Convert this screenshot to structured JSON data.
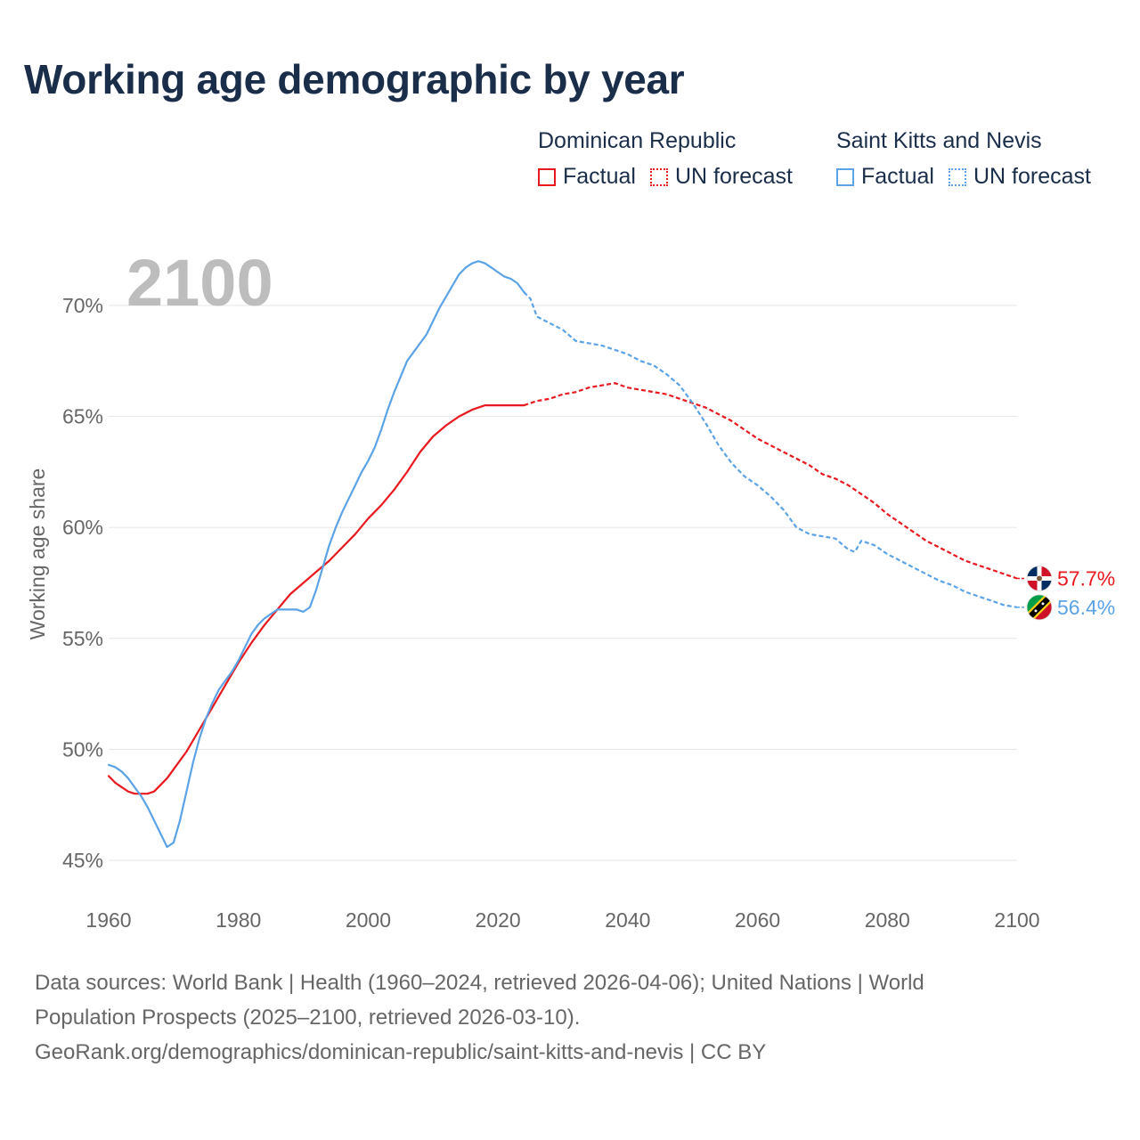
{
  "title": "Working age demographic by year",
  "legend": {
    "groups": [
      {
        "name": "Dominican Republic",
        "factual_label": "Factual",
        "forecast_label": "UN forecast",
        "color": "#e8191f"
      },
      {
        "name": "Saint Kitts and Nevis",
        "factual_label": "Factual",
        "forecast_label": "UN forecast",
        "color": "#5ba3e6"
      }
    ]
  },
  "year_watermark": "2100",
  "footer": {
    "line1": "Data sources: World Bank | Health (1960–2024, retrieved 2026-04-06); United Nations | World",
    "line2": "Population Prospects (2025–2100, retrieved 2026-03-10).",
    "line3": "GeoRank.org/demographics/dominican-republic/saint-kitts-and-nevis | CC BY"
  },
  "chart_data": {
    "type": "line",
    "title": "Working age demographic by year",
    "xlabel": "",
    "ylabel": "Working age share",
    "xlim": [
      1960,
      2100
    ],
    "ylim": [
      44,
      73
    ],
    "x_ticks": [
      1960,
      1980,
      2000,
      2020,
      2040,
      2060,
      2080,
      2100
    ],
    "y_ticks": [
      45,
      50,
      55,
      60,
      65,
      70
    ],
    "y_tick_labels": [
      "45%",
      "50%",
      "55%",
      "60%",
      "65%",
      "70%"
    ],
    "grid": true,
    "forecast_start_year": 2024,
    "series": [
      {
        "name": "Dominican Republic",
        "color": "#e8191f",
        "end_label": "57.7%",
        "flag": "dominican-republic",
        "points": [
          [
            1960,
            48.8
          ],
          [
            1961,
            48.5
          ],
          [
            1962,
            48.3
          ],
          [
            1963,
            48.1
          ],
          [
            1964,
            48.0
          ],
          [
            1965,
            48.0
          ],
          [
            1966,
            48.0
          ],
          [
            1967,
            48.1
          ],
          [
            1968,
            48.4
          ],
          [
            1969,
            48.7
          ],
          [
            1970,
            49.1
          ],
          [
            1972,
            49.9
          ],
          [
            1974,
            50.9
          ],
          [
            1976,
            51.9
          ],
          [
            1978,
            52.9
          ],
          [
            1980,
            53.9
          ],
          [
            1982,
            54.8
          ],
          [
            1984,
            55.6
          ],
          [
            1986,
            56.3
          ],
          [
            1988,
            57.0
          ],
          [
            1990,
            57.5
          ],
          [
            1992,
            58.0
          ],
          [
            1994,
            58.5
          ],
          [
            1996,
            59.1
          ],
          [
            1998,
            59.7
          ],
          [
            2000,
            60.4
          ],
          [
            2002,
            61.0
          ],
          [
            2004,
            61.7
          ],
          [
            2006,
            62.5
          ],
          [
            2008,
            63.4
          ],
          [
            2010,
            64.1
          ],
          [
            2012,
            64.6
          ],
          [
            2014,
            65.0
          ],
          [
            2016,
            65.3
          ],
          [
            2018,
            65.5
          ],
          [
            2020,
            65.5
          ],
          [
            2022,
            65.5
          ],
          [
            2024,
            65.5
          ],
          [
            2026,
            65.7
          ],
          [
            2028,
            65.8
          ],
          [
            2030,
            66.0
          ],
          [
            2032,
            66.1
          ],
          [
            2034,
            66.3
          ],
          [
            2036,
            66.4
          ],
          [
            2038,
            66.5
          ],
          [
            2040,
            66.3
          ],
          [
            2042,
            66.2
          ],
          [
            2044,
            66.1
          ],
          [
            2046,
            66.0
          ],
          [
            2048,
            65.8
          ],
          [
            2050,
            65.6
          ],
          [
            2052,
            65.4
          ],
          [
            2054,
            65.1
          ],
          [
            2056,
            64.8
          ],
          [
            2058,
            64.4
          ],
          [
            2060,
            64.0
          ],
          [
            2062,
            63.7
          ],
          [
            2064,
            63.4
          ],
          [
            2066,
            63.1
          ],
          [
            2068,
            62.8
          ],
          [
            2070,
            62.4
          ],
          [
            2072,
            62.2
          ],
          [
            2074,
            61.9
          ],
          [
            2076,
            61.5
          ],
          [
            2078,
            61.1
          ],
          [
            2080,
            60.6
          ],
          [
            2082,
            60.2
          ],
          [
            2084,
            59.8
          ],
          [
            2086,
            59.4
          ],
          [
            2088,
            59.1
          ],
          [
            2090,
            58.8
          ],
          [
            2092,
            58.5
          ],
          [
            2094,
            58.3
          ],
          [
            2096,
            58.1
          ],
          [
            2098,
            57.9
          ],
          [
            2100,
            57.7
          ]
        ]
      },
      {
        "name": "Saint Kitts and Nevis",
        "color": "#5ba3e6",
        "end_label": "56.4%",
        "flag": "saint-kitts-and-nevis",
        "points": [
          [
            1960,
            49.3
          ],
          [
            1961,
            49.2
          ],
          [
            1962,
            49.0
          ],
          [
            1963,
            48.7
          ],
          [
            1964,
            48.3
          ],
          [
            1965,
            47.9
          ],
          [
            1966,
            47.4
          ],
          [
            1967,
            46.8
          ],
          [
            1968,
            46.2
          ],
          [
            1969,
            45.6
          ],
          [
            1970,
            45.8
          ],
          [
            1971,
            46.8
          ],
          [
            1972,
            48.1
          ],
          [
            1973,
            49.4
          ],
          [
            1974,
            50.5
          ],
          [
            1975,
            51.4
          ],
          [
            1976,
            52.1
          ],
          [
            1977,
            52.7
          ],
          [
            1978,
            53.1
          ],
          [
            1979,
            53.5
          ],
          [
            1980,
            54.0
          ],
          [
            1981,
            54.6
          ],
          [
            1982,
            55.2
          ],
          [
            1983,
            55.6
          ],
          [
            1984,
            55.9
          ],
          [
            1985,
            56.1
          ],
          [
            1986,
            56.3
          ],
          [
            1987,
            56.3
          ],
          [
            1988,
            56.3
          ],
          [
            1989,
            56.3
          ],
          [
            1990,
            56.2
          ],
          [
            1991,
            56.4
          ],
          [
            1992,
            57.2
          ],
          [
            1993,
            58.2
          ],
          [
            1994,
            59.2
          ],
          [
            1995,
            60.0
          ],
          [
            1996,
            60.7
          ],
          [
            1997,
            61.3
          ],
          [
            1998,
            61.9
          ],
          [
            1999,
            62.5
          ],
          [
            2000,
            63.0
          ],
          [
            2001,
            63.6
          ],
          [
            2002,
            64.4
          ],
          [
            2003,
            65.3
          ],
          [
            2004,
            66.1
          ],
          [
            2005,
            66.8
          ],
          [
            2006,
            67.5
          ],
          [
            2007,
            67.9
          ],
          [
            2008,
            68.3
          ],
          [
            2009,
            68.7
          ],
          [
            2010,
            69.3
          ],
          [
            2011,
            69.9
          ],
          [
            2012,
            70.4
          ],
          [
            2013,
            70.9
          ],
          [
            2014,
            71.4
          ],
          [
            2015,
            71.7
          ],
          [
            2016,
            71.9
          ],
          [
            2017,
            72.0
          ],
          [
            2018,
            71.9
          ],
          [
            2019,
            71.7
          ],
          [
            2020,
            71.5
          ],
          [
            2021,
            71.3
          ],
          [
            2022,
            71.2
          ],
          [
            2023,
            71.0
          ],
          [
            2024,
            70.6
          ],
          [
            2025,
            70.3
          ],
          [
            2026,
            69.5
          ],
          [
            2028,
            69.2
          ],
          [
            2030,
            68.9
          ],
          [
            2032,
            68.4
          ],
          [
            2034,
            68.3
          ],
          [
            2036,
            68.2
          ],
          [
            2038,
            68.0
          ],
          [
            2040,
            67.8
          ],
          [
            2042,
            67.5
          ],
          [
            2044,
            67.3
          ],
          [
            2046,
            66.9
          ],
          [
            2048,
            66.4
          ],
          [
            2050,
            65.6
          ],
          [
            2052,
            64.7
          ],
          [
            2054,
            63.7
          ],
          [
            2056,
            62.9
          ],
          [
            2058,
            62.3
          ],
          [
            2060,
            61.9
          ],
          [
            2062,
            61.4
          ],
          [
            2064,
            60.8
          ],
          [
            2066,
            60.0
          ],
          [
            2068,
            59.7
          ],
          [
            2070,
            59.6
          ],
          [
            2072,
            59.5
          ],
          [
            2074,
            59.0
          ],
          [
            2075,
            58.9
          ],
          [
            2076,
            59.4
          ],
          [
            2078,
            59.2
          ],
          [
            2080,
            58.8
          ],
          [
            2082,
            58.5
          ],
          [
            2084,
            58.2
          ],
          [
            2086,
            57.9
          ],
          [
            2088,
            57.6
          ],
          [
            2090,
            57.4
          ],
          [
            2092,
            57.1
          ],
          [
            2094,
            56.9
          ],
          [
            2096,
            56.7
          ],
          [
            2098,
            56.5
          ],
          [
            2100,
            56.4
          ]
        ]
      }
    ]
  }
}
